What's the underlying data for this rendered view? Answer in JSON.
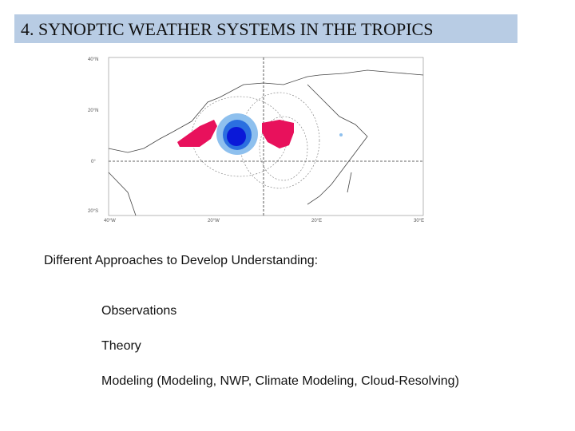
{
  "header": {
    "title": "4. SYNOPTIC WEATHER SYSTEMS IN THE TROPICS"
  },
  "figure": {
    "y_labels": [
      "40°N",
      "20°N",
      "0°",
      "20°S"
    ],
    "x_labels": [
      "40°W",
      "20°W",
      "20°E",
      "30°E"
    ]
  },
  "body": {
    "heading": "Different Approaches to Develop Understanding:",
    "items": [
      "Observations",
      "Theory",
      "Modeling (Modeling, NWP, Climate Modeling, Cloud-Resolving)"
    ]
  }
}
